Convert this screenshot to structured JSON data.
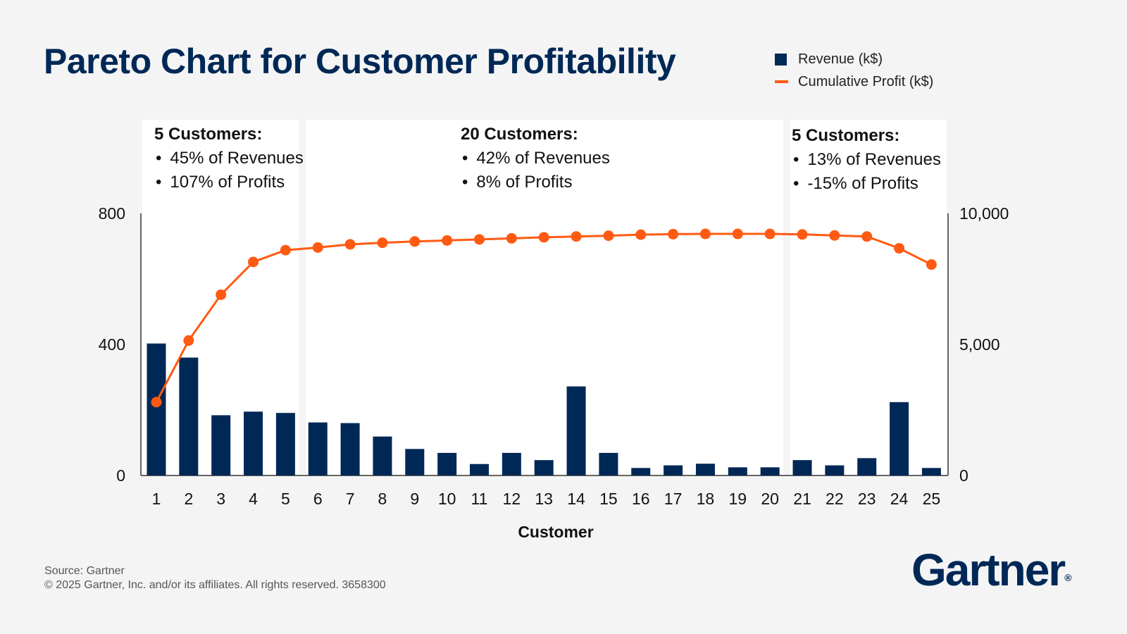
{
  "title": "Pareto Chart for Customer Profitability",
  "legend": {
    "revenue": "Revenue (k$)",
    "cumulative": "Cumulative Profit (k$)"
  },
  "colors": {
    "revenue": "#002856",
    "cumulative": "#ff5a12",
    "panel": "#ffffff",
    "axis": "#666666"
  },
  "panels": [
    {
      "heading": "5 Customers:",
      "lines": [
        "45% of Revenues",
        "107% of Profits"
      ]
    },
    {
      "heading": "20 Customers:",
      "lines": [
        "42% of Revenues",
        "8% of Profits"
      ]
    },
    {
      "heading": "5 Customers:",
      "lines": [
        "13% of Revenues",
        "-15% of Profits"
      ]
    }
  ],
  "chart_data": {
    "type": "bar+line",
    "categories": [
      "1",
      "2",
      "3",
      "4",
      "5",
      "6",
      "7",
      "8",
      "9",
      "10",
      "11",
      "12",
      "13",
      "14",
      "15",
      "16",
      "17",
      "18",
      "19",
      "20",
      "21",
      "22",
      "23",
      "24",
      "25"
    ],
    "series": [
      {
        "name": "Revenue (k$)",
        "axis": "left",
        "type": "bar",
        "values": [
          403,
          360,
          184,
          195,
          191,
          162,
          160,
          119,
          81,
          69,
          35,
          69,
          47,
          272,
          69,
          23,
          31,
          36,
          25,
          25,
          47,
          31,
          53,
          224,
          23
        ]
      },
      {
        "name": "Cumulative Profit (k$)",
        "axis": "right",
        "type": "line",
        "values": [
          2800,
          5150,
          6900,
          8150,
          8600,
          8700,
          8820,
          8880,
          8930,
          8970,
          9010,
          9050,
          9090,
          9120,
          9150,
          9190,
          9210,
          9220,
          9220,
          9220,
          9200,
          9160,
          9120,
          8670,
          8050
        ]
      }
    ],
    "left_axis": {
      "ticks": [
        "0",
        "400",
        "800"
      ],
      "tick_values": [
        0,
        400,
        800
      ],
      "ylim": [
        0,
        800
      ]
    },
    "right_axis": {
      "ticks": [
        "0",
        "5,000",
        "10,000"
      ],
      "tick_values": [
        0,
        5000,
        10000
      ],
      "ylim": [
        0,
        10000
      ]
    },
    "xlabel": "Customer",
    "groups": [
      [
        1,
        5
      ],
      [
        6,
        20
      ],
      [
        21,
        25
      ]
    ]
  },
  "footer": {
    "source": "Source: Gartner",
    "copyright": "© 2025 Gartner, Inc. and/or its affiliates. All rights reserved. 3658300"
  },
  "logo": {
    "text": "Gartner",
    "mark": "®"
  }
}
